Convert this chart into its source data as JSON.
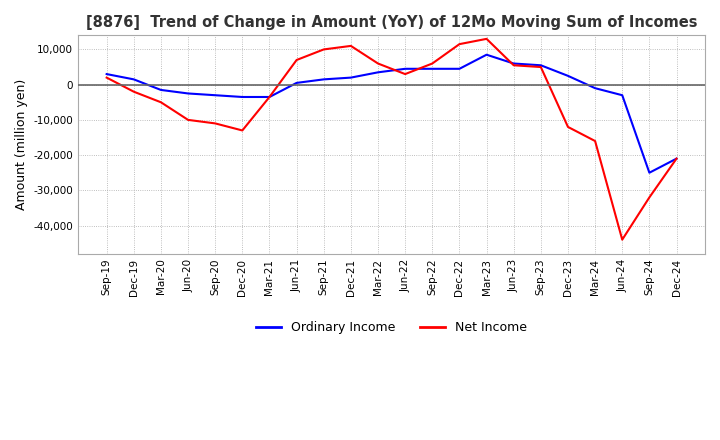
{
  "title": "[8876]  Trend of Change in Amount (YoY) of 12Mo Moving Sum of Incomes",
  "ylabel": "Amount (million yen)",
  "ylim": [
    -48000,
    14000
  ],
  "yticks": [
    10000,
    0,
    -10000,
    -20000,
    -30000,
    -40000
  ],
  "background_color": "#ffffff",
  "plot_bg_color": "#ffffff",
  "grid_color": "#aaaaaa",
  "ordinary_income_color": "#0000ff",
  "net_income_color": "#ff0000",
  "dates": [
    "Sep-19",
    "Dec-19",
    "Mar-20",
    "Jun-20",
    "Sep-20",
    "Dec-20",
    "Mar-21",
    "Jun-21",
    "Sep-21",
    "Dec-21",
    "Mar-22",
    "Jun-22",
    "Sep-22",
    "Dec-22",
    "Mar-23",
    "Jun-23",
    "Sep-23",
    "Dec-23",
    "Mar-24",
    "Jun-24",
    "Sep-24",
    "Dec-24"
  ],
  "ordinary_income": [
    3000,
    1500,
    -1500,
    -2500,
    -3000,
    -3500,
    -3500,
    500,
    1500,
    2000,
    3500,
    4500,
    4500,
    4500,
    8500,
    6000,
    5500,
    2500,
    -1000,
    -3000,
    -25000,
    -21000
  ],
  "net_income": [
    2000,
    -2000,
    -5000,
    -10000,
    -11000,
    -13000,
    -3500,
    7000,
    10000,
    11000,
    6000,
    3000,
    6000,
    11500,
    13000,
    5500,
    5000,
    -12000,
    -16000,
    -44000,
    -32000,
    -21000
  ]
}
